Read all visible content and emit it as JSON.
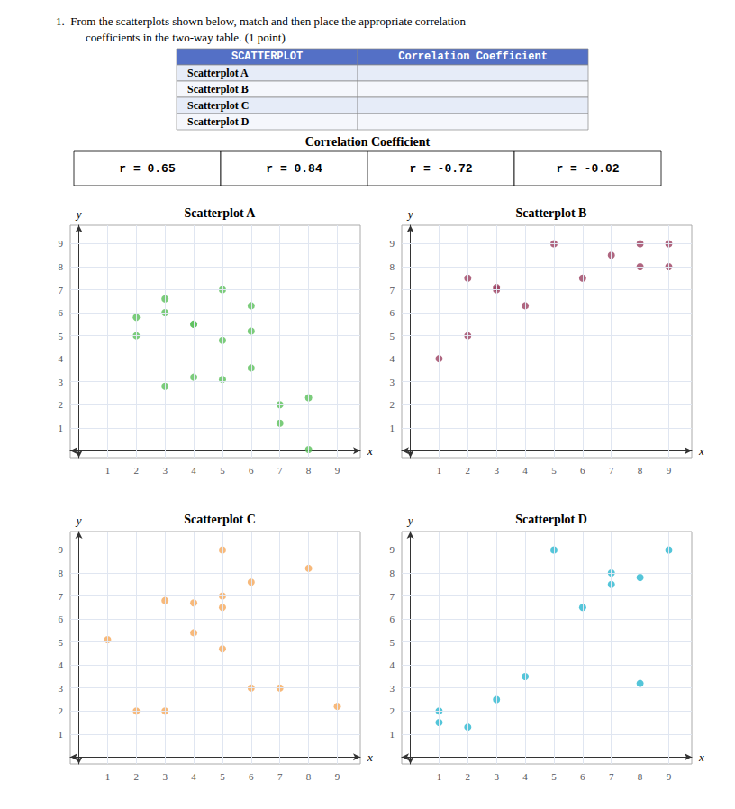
{
  "title": "1.  From the scatterplots shown below, match and then place the appropriate correlation",
  "subtitle": "coefficients in the two-way table. (1 point)",
  "annotations": {
    "table_headers": [
      "SCATTERPLOT",
      "Correlation Coefficient"
    ],
    "table_rows": [
      "Scatterplot A",
      "Scatterplot B",
      "Scatterplot C",
      "Scatterplot D"
    ],
    "coefficient_title": "Correlation Coefficient",
    "coefficients": [
      "r = 0.65",
      "r = 0.84",
      "r = -0.72",
      "r = -0.02"
    ]
  },
  "chart_data": [
    {
      "type": "scatter",
      "title": "Scatterplot A",
      "color": "#5abf5a",
      "x": [
        2,
        2,
        3,
        3,
        4,
        4,
        5,
        5,
        6,
        6,
        7,
        8,
        3,
        4,
        5,
        6,
        7,
        8
      ],
      "values": [
        5.8,
        5.0,
        6.6,
        6.0,
        5.5,
        5.5,
        7.0,
        4.8,
        6.3,
        5.2,
        2.0,
        2.3,
        2.8,
        3.2,
        3.1,
        3.6,
        1.2,
        0.05
      ],
      "xlabel": "x",
      "ylabel": "y",
      "xlim": [
        -0.3,
        9.8
      ],
      "ylim": [
        -0.3,
        9.8
      ],
      "xticks": [
        1,
        2,
        3,
        4,
        5,
        6,
        7,
        8,
        9
      ],
      "yticks": [
        1,
        2,
        3,
        4,
        5,
        6,
        7,
        8,
        9
      ],
      "grid": true
    },
    {
      "type": "scatter",
      "title": "Scatterplot B",
      "color": "#9b4060",
      "x": [
        1,
        2,
        2,
        3,
        3,
        4,
        5,
        6,
        7,
        8,
        8,
        9,
        9
      ],
      "values": [
        4.0,
        7.5,
        5.0,
        7.1,
        7.0,
        6.3,
        9.0,
        7.5,
        8.5,
        8.0,
        9.0,
        9.0,
        8.0
      ],
      "xlabel": "x",
      "ylabel": "y",
      "xlim": [
        -0.3,
        9.8
      ],
      "ylim": [
        -0.3,
        9.8
      ],
      "xticks": [
        1,
        2,
        3,
        4,
        5,
        6,
        7,
        8,
        9
      ],
      "yticks": [
        1,
        2,
        3,
        4,
        5,
        6,
        7,
        8,
        9
      ],
      "grid": true
    },
    {
      "type": "scatter",
      "title": "Scatterplot C",
      "color": "#f5a85a",
      "x": [
        1,
        2,
        3,
        3,
        4,
        4,
        5,
        5,
        5,
        6,
        6,
        7,
        8,
        9,
        5
      ],
      "values": [
        5.1,
        2.0,
        6.8,
        2.0,
        6.7,
        5.4,
        7.0,
        6.5,
        4.7,
        7.6,
        3.0,
        3.0,
        8.2,
        2.2,
        9.0
      ],
      "xlabel": "x",
      "ylabel": "y",
      "xlim": [
        -0.3,
        9.8
      ],
      "ylim": [
        -0.3,
        9.8
      ],
      "xticks": [
        1,
        2,
        3,
        4,
        5,
        6,
        7,
        8,
        9
      ],
      "yticks": [
        1,
        2,
        3,
        4,
        5,
        6,
        7,
        8,
        9
      ],
      "grid": true
    },
    {
      "type": "scatter",
      "title": "Scatterplot D",
      "color": "#29b6d0",
      "x": [
        1,
        1,
        2,
        3,
        4,
        5,
        6,
        7,
        7,
        8,
        8,
        9
      ],
      "values": [
        1.5,
        2.0,
        1.3,
        2.5,
        3.5,
        9.0,
        6.5,
        7.5,
        8.0,
        7.8,
        3.2,
        9.0
      ],
      "xlabel": "x",
      "ylabel": "y",
      "xlim": [
        -0.3,
        9.8
      ],
      "ylim": [
        -0.3,
        9.8
      ],
      "xticks": [
        1,
        2,
        3,
        4,
        5,
        6,
        7,
        8,
        9
      ],
      "yticks": [
        1,
        2,
        3,
        4,
        5,
        6,
        7,
        8,
        9
      ],
      "grid": true
    }
  ]
}
